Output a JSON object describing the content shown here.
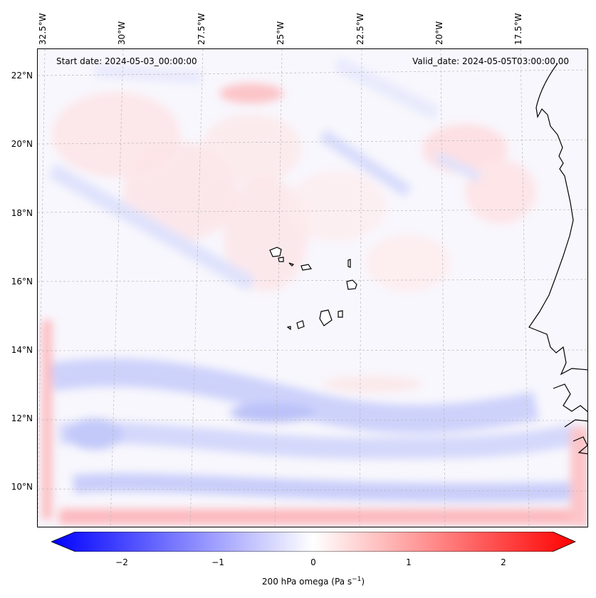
{
  "map": {
    "start_date_label": "Start date: 2024-05-03_00:00:00",
    "valid_date_label": "Valid_date: 2024-05-05T03:00:00.00",
    "lon_labels": [
      "32.5°W",
      "30°W",
      "27.5°W",
      "25°W",
      "22.5°W",
      "20°W",
      "17.5°W"
    ],
    "lat_labels": [
      "22°N",
      "20°N",
      "18°N",
      "16°N",
      "14°N",
      "12°N",
      "10°N"
    ]
  },
  "colorbar": {
    "tick_labels": [
      "−2",
      "−1",
      "0",
      "1",
      "2"
    ],
    "title_text": "200 hPa omega (Pa s",
    "title_sup": "−1",
    "title_end": ")",
    "range": [
      -2.6,
      2.6
    ],
    "colors": {
      "negative": "#0000ff",
      "zero": "#ffffff",
      "positive": "#ff0000"
    }
  }
}
